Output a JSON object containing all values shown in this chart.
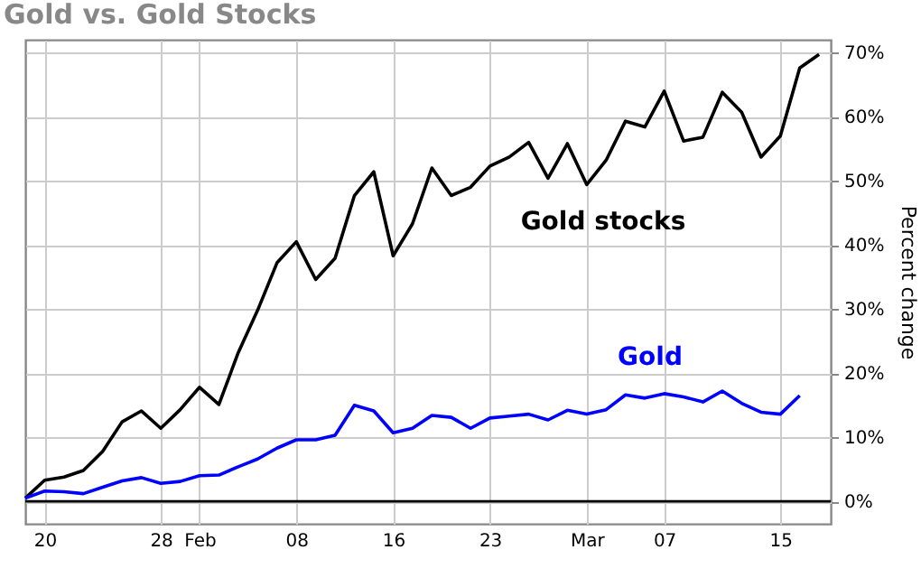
{
  "chart_data": {
    "type": "line",
    "title": "Gold vs. Gold Stocks",
    "ylabel": "Percent change",
    "categories": [
      null,
      "20",
      null,
      null,
      null,
      null,
      null,
      "28",
      null,
      "Feb",
      null,
      null,
      null,
      null,
      "08",
      null,
      null,
      null,
      null,
      "16",
      null,
      null,
      null,
      null,
      "23",
      null,
      null,
      null,
      null,
      "Mar",
      null,
      null,
      null,
      "07",
      null,
      null,
      null,
      null,
      null,
      "15",
      null,
      null
    ],
    "series": [
      {
        "name": "Gold stocks",
        "color": "#000000",
        "values": [
          0.5,
          3.3,
          3.8,
          4.8,
          7.8,
          12.4,
          14.1,
          11.4,
          14.3,
          17.8,
          15.1,
          23.2,
          29.8,
          37.2,
          40.5,
          34.6,
          37.9,
          47.7,
          51.4,
          38.3,
          43.3,
          52,
          47.7,
          49,
          52.3,
          53.7,
          56,
          50.4,
          55.8,
          49.4,
          53.2,
          59.3,
          58.4,
          64,
          56.2,
          56.8,
          63.8,
          60.7,
          53.7,
          57,
          67.6,
          69.7
        ]
      },
      {
        "name": "Gold",
        "color": "#0000ff",
        "values": [
          0.5,
          1.6,
          1.5,
          1.2,
          2.2,
          3.2,
          3.7,
          2.8,
          3.1,
          4.0,
          4.1,
          5.4,
          6.6,
          8.3,
          9.6,
          9.6,
          10.3,
          15,
          14.1,
          10.7,
          11.4,
          13.4,
          13.1,
          11.4,
          13,
          13.3,
          13.6,
          12.7,
          14.2,
          13.6,
          14.3,
          16.6,
          16.1,
          16.8,
          16.3,
          15.5,
          17.2,
          15.3,
          13.9,
          13.6,
          16.5,
          null
        ]
      }
    ],
    "ylim": [
      -3.5,
      72
    ],
    "yticks": [
      {
        "value": 0,
        "label": "0%"
      },
      {
        "value": 10,
        "label": "10%"
      },
      {
        "value": 20,
        "label": "20%"
      },
      {
        "value": 30,
        "label": "30%"
      },
      {
        "value": 40,
        "label": "40%"
      },
      {
        "value": 50,
        "label": "50%"
      },
      {
        "value": 60,
        "label": "60%"
      },
      {
        "value": 70,
        "label": "70%"
      }
    ],
    "ref_lines": [
      {
        "axis": "y",
        "value": 0,
        "color": "#000000"
      }
    ],
    "grid": true,
    "marker": "none",
    "line_style": "solid"
  }
}
